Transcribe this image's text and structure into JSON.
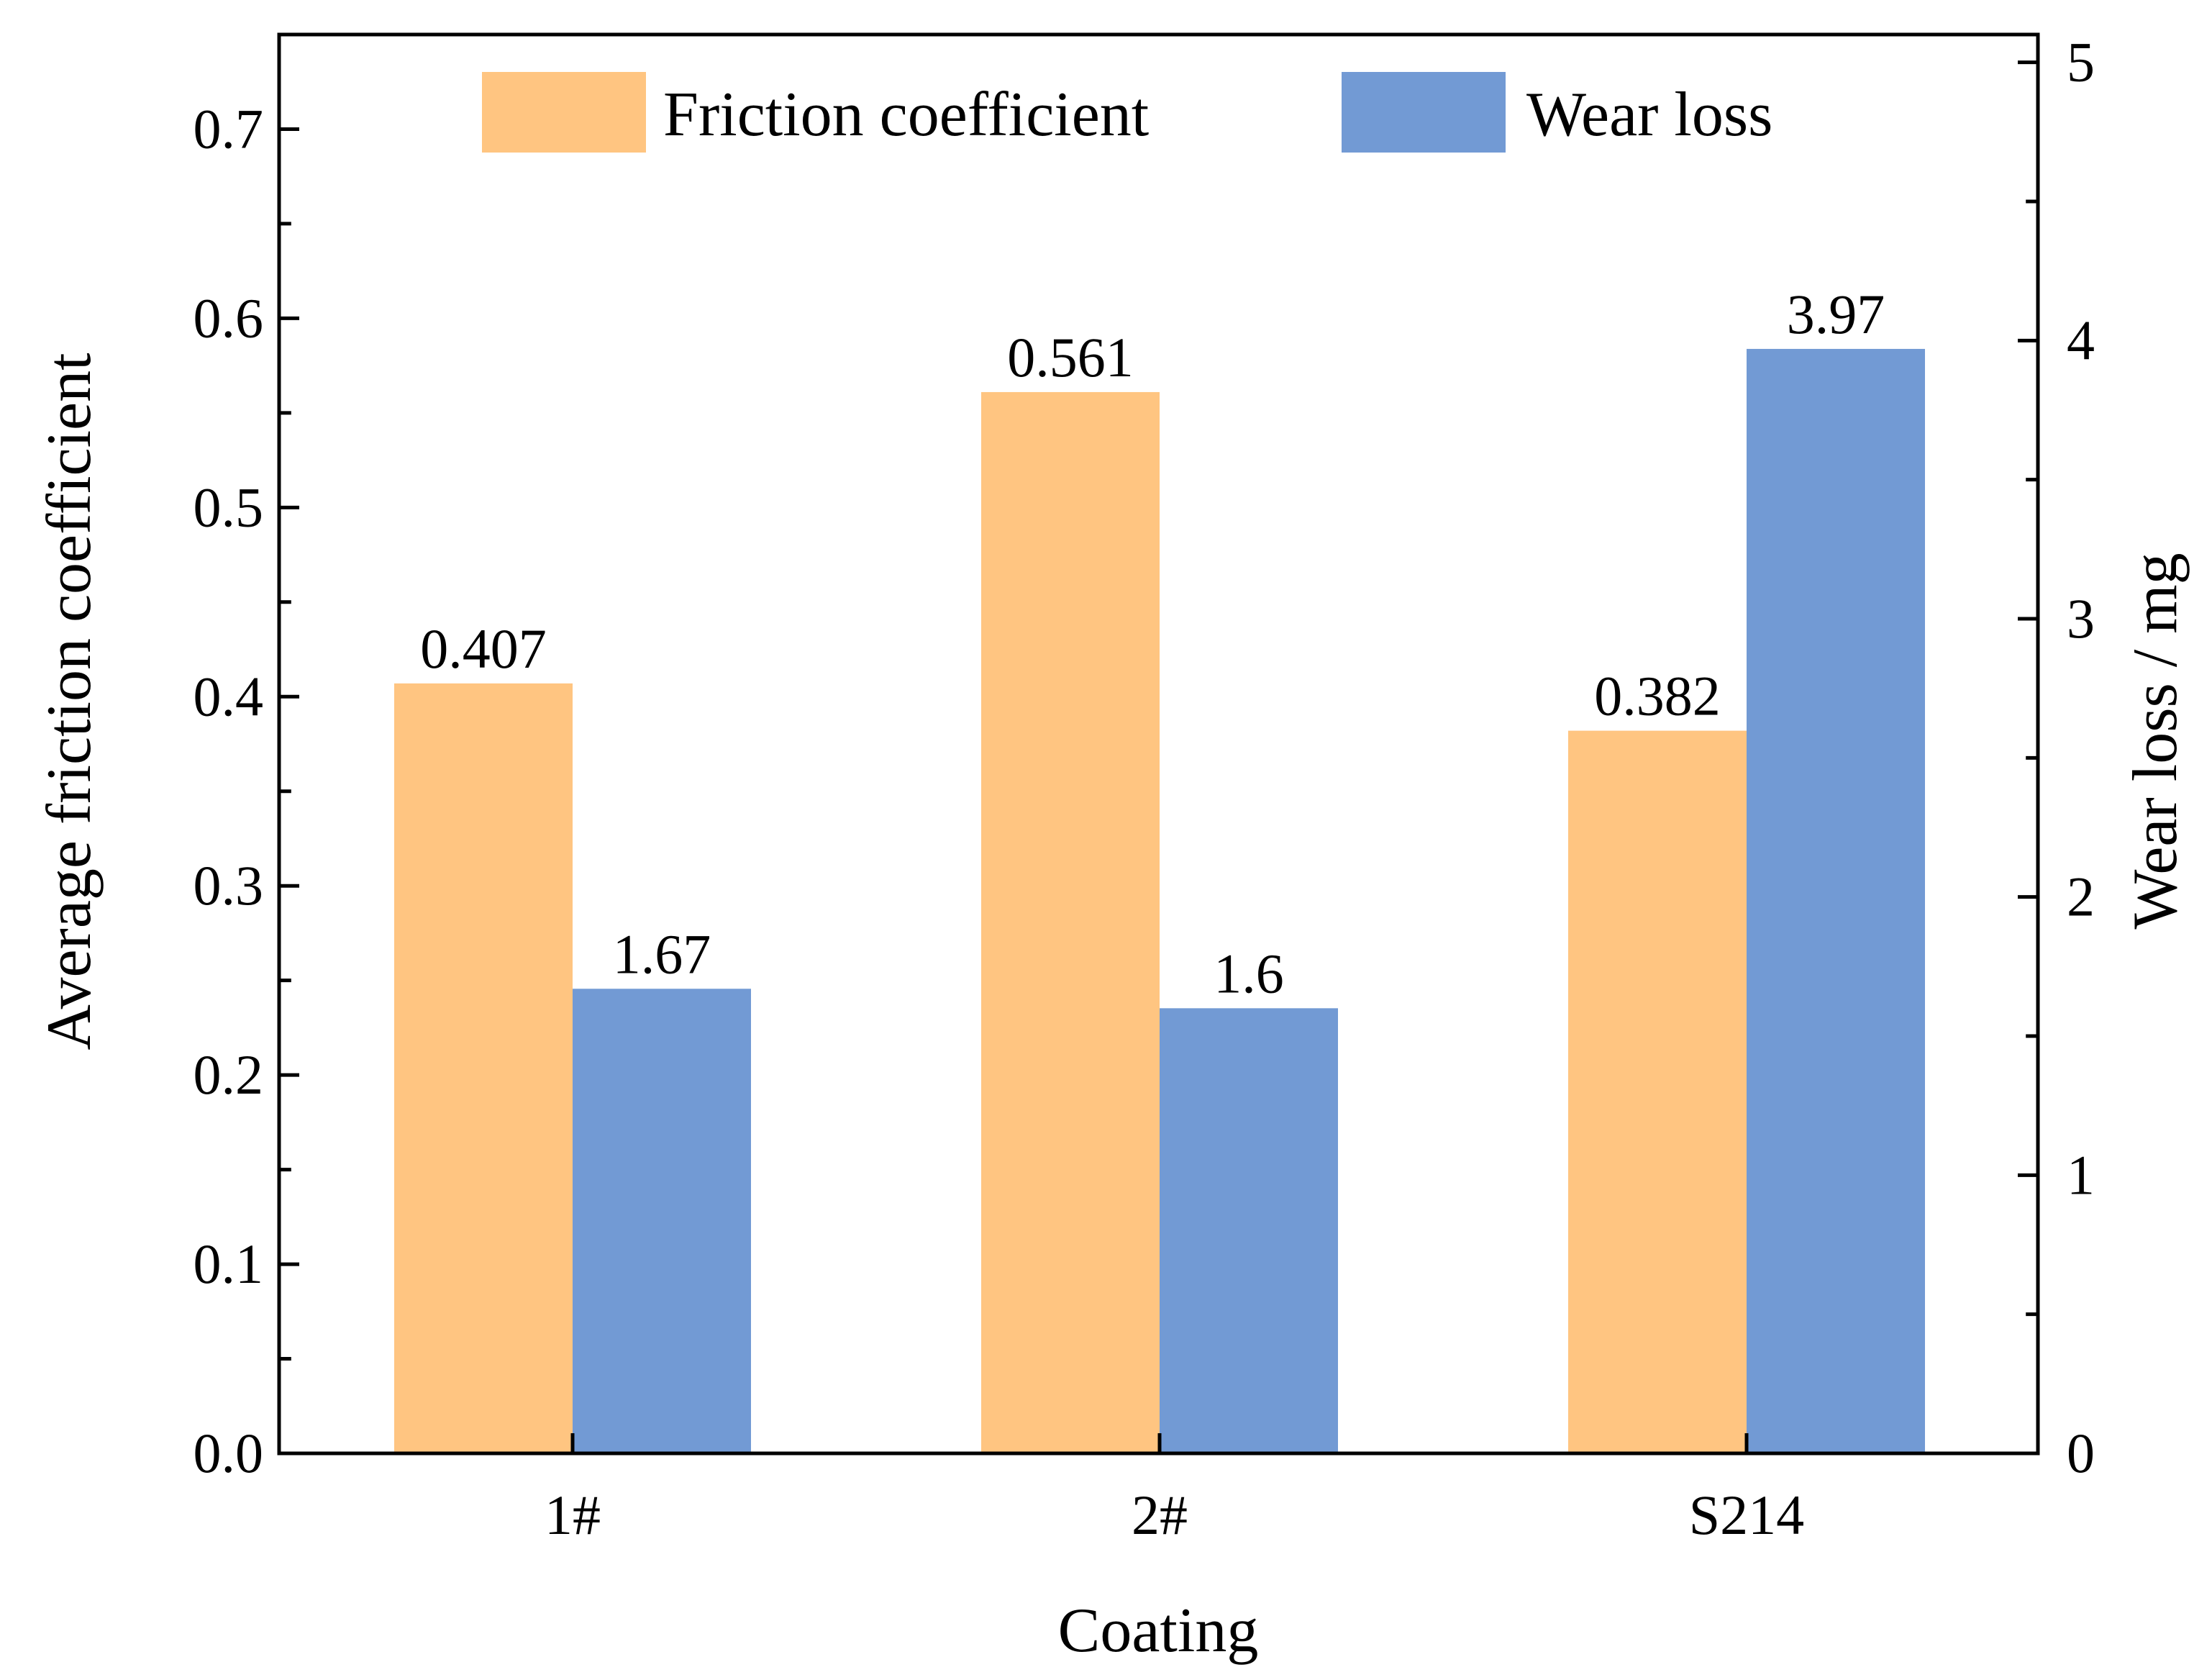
{
  "chart_data": {
    "type": "bar",
    "title": "",
    "xlabel": "Coating",
    "ylabel_left": "Average friction coefficient",
    "ylabel_right": "Wear loss / mg",
    "categories": [
      "1#",
      "2#",
      "S214"
    ],
    "series": [
      {
        "name": "Friction coefficient",
        "axis": "left",
        "color": "#FFC581",
        "values": [
          0.407,
          0.561,
          0.382
        ],
        "labels": [
          "0.407",
          "0.561",
          "0.382"
        ]
      },
      {
        "name": "Wear loss",
        "axis": "right",
        "color": "#729AD4",
        "values": [
          1.67,
          1.6,
          3.97
        ],
        "labels": [
          "1.67",
          "1.6",
          "3.97"
        ]
      }
    ],
    "ylim_left": [
      0,
      0.75
    ],
    "ylim_right": [
      0,
      5.1
    ],
    "left_ticks": [
      "0.0",
      "0.1",
      "0.2",
      "0.3",
      "0.4",
      "0.5",
      "0.6",
      "0.7"
    ],
    "right_ticks": [
      "0",
      "1",
      "2",
      "3",
      "4",
      "5"
    ],
    "legend_position": "top-center",
    "grid": false
  }
}
